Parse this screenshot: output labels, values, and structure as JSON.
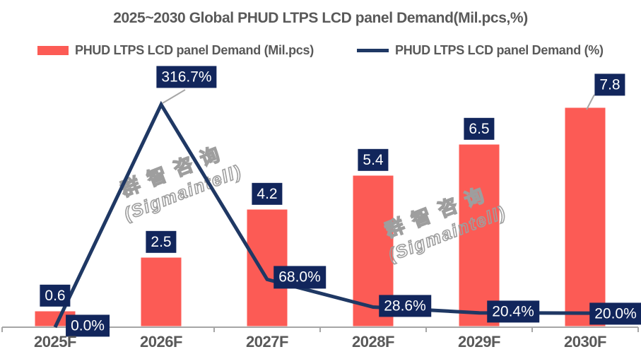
{
  "title": "2025~2030 Global PHUD LTPS LCD panel Demand(Mil.pcs,%)",
  "legend": [
    {
      "label": "PHUD LTPS LCD panel Demand (Mil.pcs)",
      "type": "bar"
    },
    {
      "label": "PHUD LTPS LCD panel Demand (%)",
      "type": "line"
    }
  ],
  "watermark": {
    "line1": "群智咨询",
    "line2": "(Sigmaintell)"
  },
  "colors": {
    "bar_fill": "#FC5B55",
    "bar_border": "#FFFFFF",
    "line": "#1F3864",
    "label_box": "#12265C",
    "label_text": "#FFFFFF",
    "axis": "#A6A6A6",
    "leader": "#A6A6A6",
    "text_gray": "#595959"
  },
  "chart_data": {
    "type": "combo",
    "categories": [
      "2025F",
      "2026F",
      "2027F",
      "2028F",
      "2029F",
      "2030F"
    ],
    "series": [
      {
        "name": "PHUD LTPS LCD panel Demand (Mil.pcs)",
        "type": "bar",
        "unit": "Mil.pcs",
        "values": [
          0.6,
          2.5,
          4.2,
          5.4,
          6.5,
          7.8
        ],
        "labels": [
          "0.6",
          "2.5",
          "4.2",
          "5.4",
          "6.5",
          "7.8"
        ]
      },
      {
        "name": "PHUD LTPS LCD panel Demand (%)",
        "type": "line",
        "unit": "%",
        "values": [
          0.0,
          316.7,
          68.0,
          28.6,
          20.4,
          20.0
        ],
        "labels": [
          "0.0%",
          "316.7%",
          "68.0%",
          "28.6%",
          "20.4%",
          "20.0%"
        ]
      }
    ],
    "title": "2025~2030 Global PHUD LTPS LCD panel Demand(Mil.pcs,%)",
    "xlabel": "",
    "ylabel": "",
    "ylim_bar": [
      0,
      8.5
    ],
    "ylim_line": [
      0,
      350
    ],
    "grid": false,
    "legend_position": "top"
  }
}
